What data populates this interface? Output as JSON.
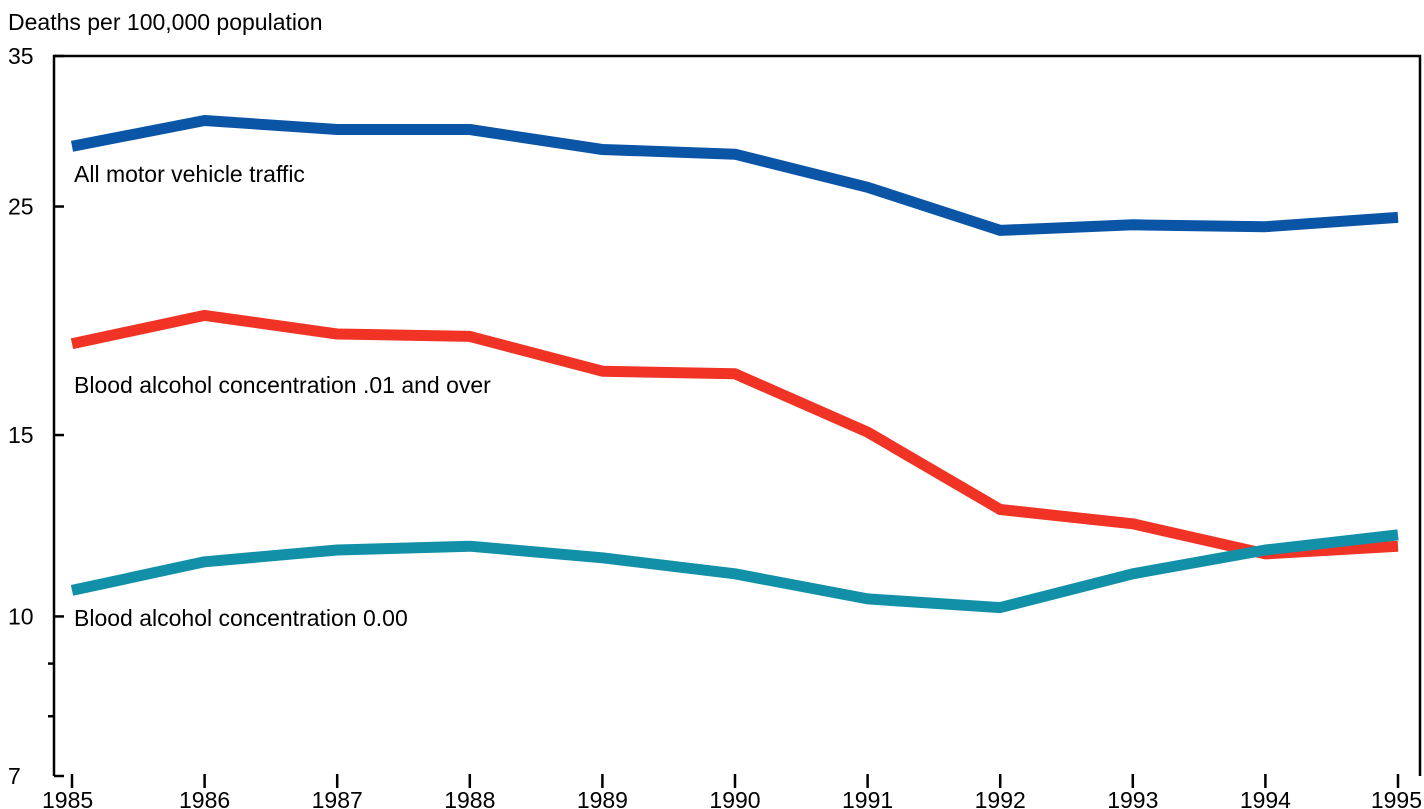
{
  "chart_data": {
    "type": "line",
    "ylabel": "Deaths per 100,000 population",
    "xlabel": "",
    "y_scale": "log",
    "ylim": [
      7,
      35
    ],
    "y_ticks": [
      7,
      10,
      15,
      25,
      35
    ],
    "y_minor_ticks": [
      8,
      9
    ],
    "x": [
      "1985",
      "1986",
      "1987",
      "1988",
      "1989",
      "1990",
      "1991",
      "1992",
      "1993",
      "1994",
      "1995"
    ],
    "grid": false,
    "series": [
      {
        "name": "All motor vehicle traffic",
        "color": "#0a55a6",
        "values": [
          28.6,
          30.3,
          29.7,
          29.7,
          28.4,
          28.1,
          26.1,
          23.7,
          24.0,
          23.9,
          24.4
        ]
      },
      {
        "name": "Blood alcohol concentration .01 and over",
        "color": "#f03324",
        "values": [
          18.4,
          19.6,
          18.8,
          18.7,
          17.3,
          17.2,
          15.1,
          12.7,
          12.3,
          11.5,
          11.7
        ]
      },
      {
        "name": "Blood alcohol concentration 0.00",
        "color": "#1190a8",
        "values": [
          10.6,
          11.3,
          11.6,
          11.7,
          11.4,
          11.0,
          10.4,
          10.2,
          11.0,
          11.6,
          12.0
        ]
      }
    ]
  }
}
